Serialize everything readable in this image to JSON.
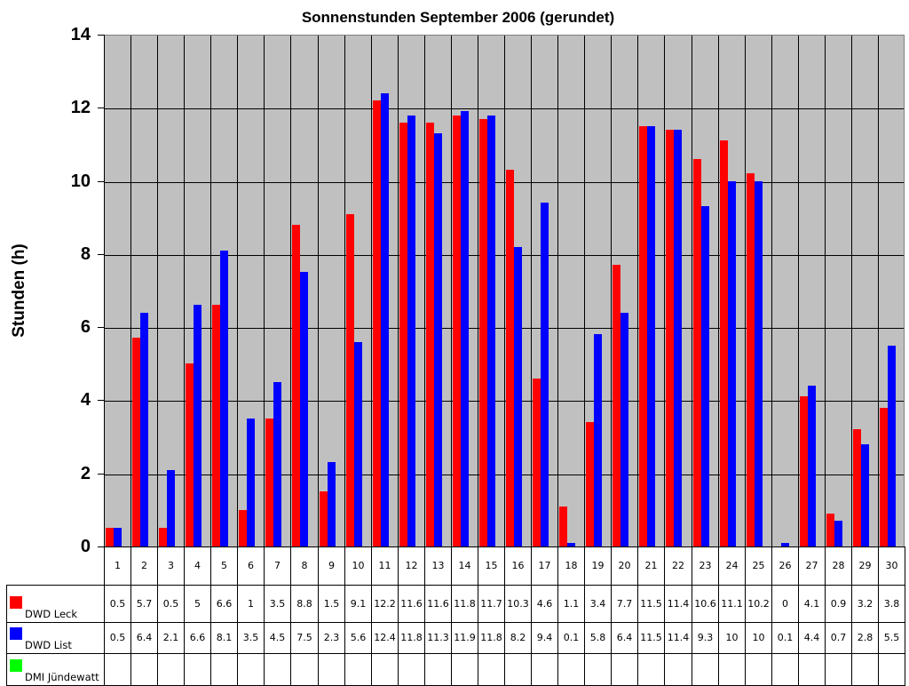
{
  "chart_data": {
    "type": "bar",
    "title": "Sonnenstunden September 2006 (gerundet)",
    "xlabel": "",
    "ylabel": "Stunden (h)",
    "ylim": [
      0,
      14
    ],
    "yticks": [
      0,
      2,
      4,
      6,
      8,
      10,
      12,
      14
    ],
    "grid": true,
    "legend_position": "data-table-below",
    "categories": [
      "1",
      "2",
      "3",
      "4",
      "5",
      "6",
      "7",
      "8",
      "9",
      "10",
      "11",
      "12",
      "13",
      "14",
      "15",
      "16",
      "17",
      "18",
      "19",
      "20",
      "21",
      "22",
      "23",
      "24",
      "25",
      "26",
      "27",
      "28",
      "29",
      "30"
    ],
    "series": [
      {
        "name": "DWD Leck",
        "color": "#ff0000",
        "values": [
          0.5,
          5.7,
          0.5,
          5,
          6.6,
          1,
          3.5,
          8.8,
          1.5,
          9.1,
          12.2,
          11.6,
          11.6,
          11.8,
          11.7,
          10.3,
          4.6,
          1.1,
          3.4,
          7.7,
          11.5,
          11.4,
          10.6,
          11.1,
          10.2,
          0,
          4.1,
          0.9,
          3.2,
          3.8
        ]
      },
      {
        "name": "DWD List",
        "color": "#0000ff",
        "values": [
          0.5,
          6.4,
          2.1,
          6.6,
          8.1,
          3.5,
          4.5,
          7.5,
          2.3,
          5.6,
          12.4,
          11.8,
          11.3,
          11.9,
          11.8,
          8.2,
          9.4,
          0.1,
          5.8,
          6.4,
          11.5,
          11.4,
          9.3,
          10,
          10,
          0.1,
          4.4,
          0.7,
          2.8,
          5.5
        ]
      },
      {
        "name": "DMI Jündewatt",
        "color": "#00ff00",
        "values": [
          null,
          null,
          null,
          null,
          null,
          null,
          null,
          null,
          null,
          null,
          null,
          null,
          null,
          null,
          null,
          null,
          null,
          null,
          null,
          null,
          null,
          null,
          null,
          null,
          null,
          null,
          null,
          null,
          null,
          null
        ]
      }
    ],
    "plot_background": "#c0c0c0"
  },
  "table": {
    "rows": [
      {
        "label": "DWD Leck",
        "display": [
          "0.5",
          "5.7",
          "0.5",
          "5",
          "6.6",
          "1",
          "3.5",
          "8.8",
          "1.5",
          "9.1",
          "12.2",
          "11.6",
          "11.6",
          "11.8",
          "11.7",
          "10.3",
          "4.6",
          "1.1",
          "3.4",
          "7.7",
          "11.5",
          "11.4",
          "10.6",
          "11.1",
          "10.2",
          "0",
          "4.1",
          "0.9",
          "3.2",
          "3.8"
        ]
      },
      {
        "label": "DWD List",
        "display": [
          "0.5",
          "6.4",
          "2.1",
          "6.6",
          "8.1",
          "3.5",
          "4.5",
          "7.5",
          "2.3",
          "5.6",
          "12.4",
          "11.8",
          "11.3",
          "11.9",
          "11.8",
          "8.2",
          "9.4",
          "0.1",
          "5.8",
          "6.4",
          "11.5",
          "11.4",
          "9.3",
          "10",
          "10",
          "0.1",
          "4.4",
          "0.7",
          "2.8",
          "5.5"
        ]
      },
      {
        "label": "DMI Jündewatt",
        "display": [
          "",
          "",
          "",
          "",
          "",
          "",
          "",
          "",
          "",
          "",
          "",
          "",
          "",
          "",
          "",
          "",
          "",
          "",
          "",
          "",
          "",
          "",
          "",
          "",
          "",
          "",
          "",
          "",
          "",
          ""
        ]
      }
    ]
  }
}
